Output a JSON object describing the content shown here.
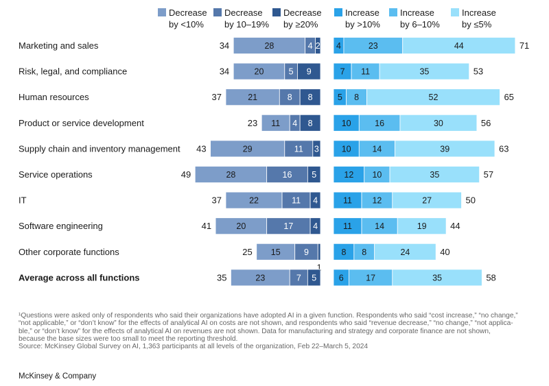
{
  "chart_data": {
    "type": "bar",
    "stacking": "diverging horizontal stacked",
    "legend": [
      {
        "key": "dec_lt10",
        "line1": "Decrease",
        "line2": "by <10%",
        "color": "#7d9dc9"
      },
      {
        "key": "dec_10_19",
        "line1": "Decrease",
        "line2": "by 10–19%",
        "color": "#5578ab"
      },
      {
        "key": "dec_ge20",
        "line1": "Decrease",
        "line2": "by ≥20%",
        "color": "#2f5890"
      },
      {
        "key": "inc_gt10",
        "line1": "Increase",
        "line2": "by >10%",
        "color": "#2aa2e8"
      },
      {
        "key": "inc_6_10",
        "line1": "Increase",
        "line2": "by 6–10%",
        "color": "#5bbdf0"
      },
      {
        "key": "inc_le5",
        "line1": "Increase",
        "line2": "by ≤5%",
        "color": "#99e0fb"
      }
    ],
    "categories": [
      "Marketing and sales",
      "Risk, legal, and compliance",
      "Human resources",
      "Product or service development",
      "Supply chain and inventory management",
      "Service operations",
      "IT",
      "Software engineering",
      "Other corporate functions",
      "Average across all functions"
    ],
    "bold_categories": [
      "Average across all functions"
    ],
    "decrease": {
      "totals": [
        34,
        34,
        37,
        23,
        43,
        49,
        37,
        41,
        25,
        35
      ],
      "dec_lt10": [
        28,
        20,
        21,
        11,
        29,
        28,
        22,
        20,
        15,
        23
      ],
      "dec_10_19": [
        4,
        5,
        8,
        4,
        11,
        16,
        11,
        17,
        9,
        7
      ],
      "dec_ge20": [
        2,
        9,
        8,
        8,
        3,
        5,
        4,
        4,
        1,
        5
      ]
    },
    "increase": {
      "totals": [
        71,
        53,
        65,
        56,
        63,
        57,
        50,
        44,
        40,
        58
      ],
      "inc_gt10": [
        4,
        7,
        5,
        10,
        10,
        12,
        11,
        11,
        8,
        6
      ],
      "inc_6_10": [
        23,
        11,
        8,
        16,
        14,
        10,
        12,
        14,
        8,
        17
      ],
      "inc_le5": [
        44,
        35,
        52,
        30,
        39,
        35,
        27,
        19,
        24,
        35
      ]
    }
  },
  "footnote": {
    "line1": "¹Questions were asked only of respondents who said their organizations have adopted AI in a given function. Respondents who said “cost increase,” “no change,”\n“not applicable,” or “don’t know” for the effects of analytical AI on costs are not shown, and respondents who said “revenue decrease,” “no change,” “not applica-\nble,” or “don’t know” for the effects of analytical AI on revenues are not shown. Data for manufacturing and strategy and corporate finance are not shown,\nbecause the base sizes were too small to meet the reporting threshold.",
    "source": "Source: McKinsey Global Survey on AI, 1,363 participants at all levels of the organization, Feb 22–March 5, 2024"
  },
  "brand": "McKinsey & Company"
}
